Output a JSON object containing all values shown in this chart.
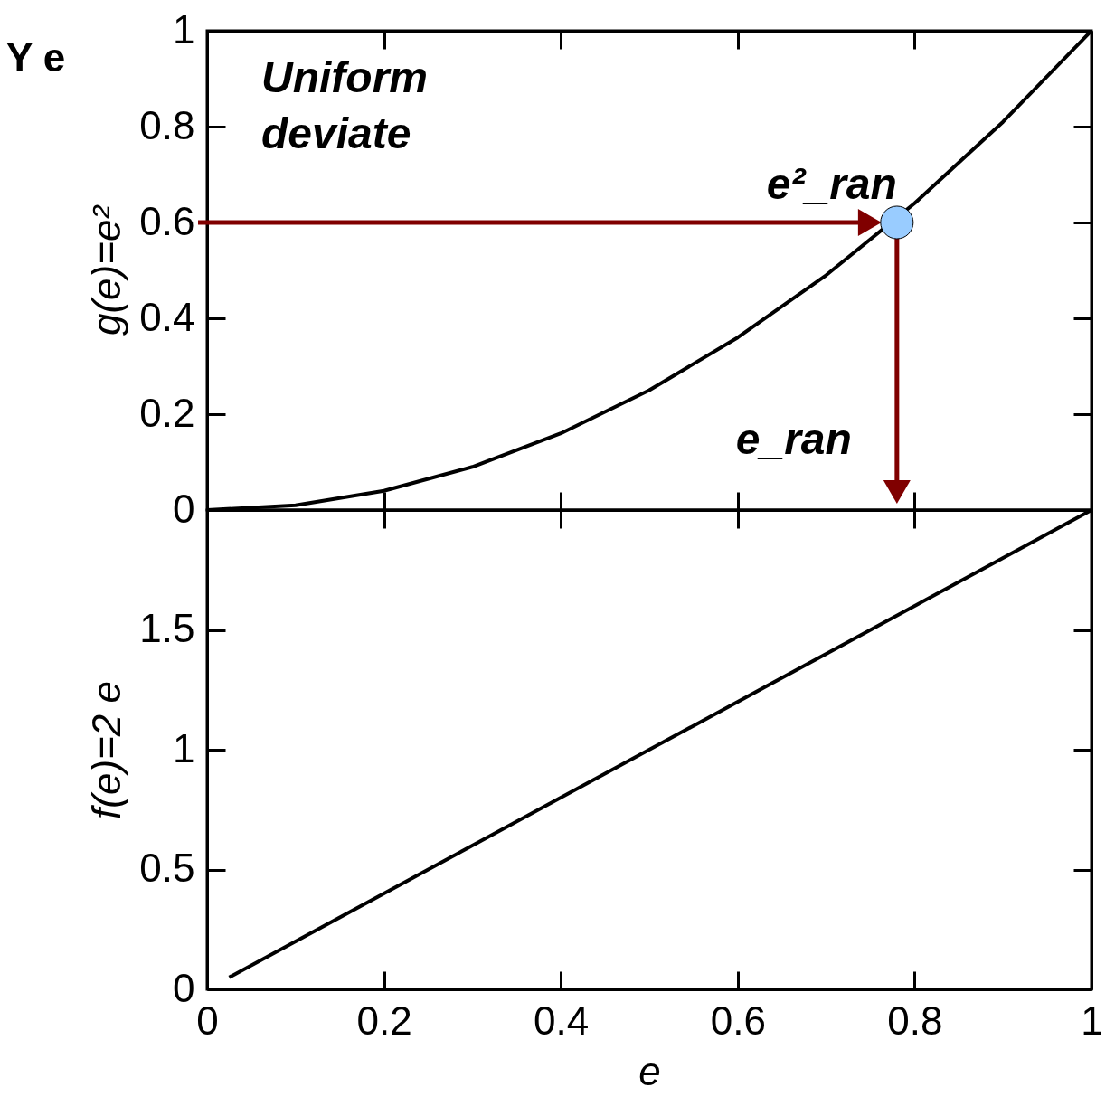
{
  "chart_data": [
    {
      "type": "line",
      "title": "Y e",
      "ylabel": "g(e)=e²",
      "xlim": [
        0,
        1
      ],
      "ylim": [
        0,
        1
      ],
      "xticks": [
        0,
        0.2,
        0.4,
        0.6,
        0.8,
        1
      ],
      "yticks": [
        0,
        0.2,
        0.4,
        0.6,
        0.8,
        1
      ],
      "tick_labels": "y",
      "series": [
        {
          "type": "line",
          "color": "#000000",
          "x": [
            0,
            0.1,
            0.2,
            0.3,
            0.4,
            0.5,
            0.6,
            0.7,
            0.8,
            0.9,
            1
          ],
          "values": [
            0,
            0.01,
            0.04,
            0.09,
            0.16,
            0.25,
            0.36,
            0.49,
            0.64,
            0.81,
            1
          ]
        },
        {
          "type": "scatter",
          "color": "#99ccff",
          "x": [
            0.78
          ],
          "values": [
            0.6
          ]
        }
      ],
      "ref_lines": [
        {
          "axis": "y",
          "value": 0.6,
          "color": "#800000"
        },
        {
          "axis": "x",
          "value": 0.78,
          "color": "#800000"
        }
      ],
      "annotations": [
        "Uniform deviate",
        {
          "text": "e²_ran",
          "x": 0.78,
          "y": 0.6
        },
        "e_ran"
      ]
    },
    {
      "type": "line",
      "xlabel": "e",
      "ylabel": "f(e)=2 e",
      "xlim": [
        0,
        1
      ],
      "ylim": [
        0,
        2
      ],
      "xticks": [
        0,
        0.2,
        0.4,
        0.6,
        0.8,
        1
      ],
      "yticks": [
        0,
        0.5,
        1,
        1.5
      ],
      "series": [
        {
          "type": "line",
          "color": "#000000",
          "x": [
            0.025,
            1
          ],
          "values": [
            0.05,
            2
          ]
        }
      ]
    }
  ]
}
